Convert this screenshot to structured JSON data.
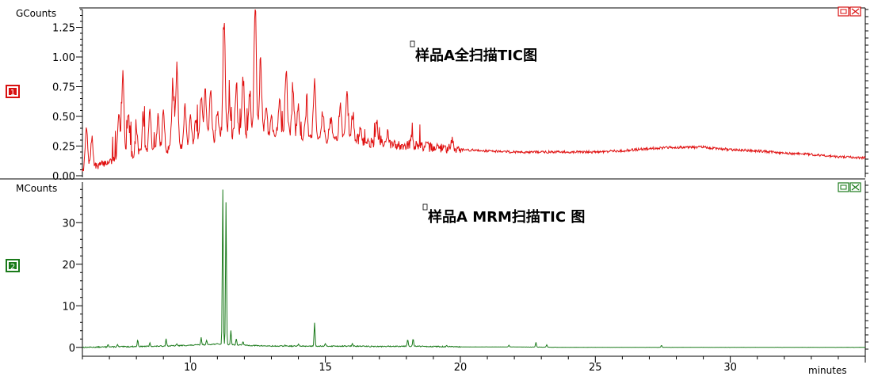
{
  "chart_data": [
    {
      "type": "line",
      "panel_index": "1",
      "title": "样品A全扫描TIC图",
      "ylabel": "GCounts",
      "xlabel": "minutes",
      "color": "#e01010",
      "xlim": [
        6,
        35
      ],
      "ylim": [
        0,
        1.4
      ],
      "y_ticks": [
        0.0,
        0.25,
        0.5,
        0.75,
        1.0,
        1.25
      ],
      "y_tick_labels": [
        "0.00",
        "0.25",
        "0.50",
        "0.75",
        "1.00",
        "1.25"
      ],
      "baseline": [
        [
          6.0,
          0.05
        ],
        [
          6.5,
          0.08
        ],
        [
          7.0,
          0.12
        ],
        [
          7.5,
          0.16
        ],
        [
          8.0,
          0.18
        ],
        [
          8.5,
          0.2
        ],
        [
          9.0,
          0.22
        ],
        [
          9.5,
          0.24
        ],
        [
          10.0,
          0.26
        ],
        [
          10.5,
          0.3
        ],
        [
          11.0,
          0.32
        ],
        [
          11.5,
          0.33
        ],
        [
          12.0,
          0.34
        ],
        [
          12.5,
          0.35
        ],
        [
          13.0,
          0.35
        ],
        [
          13.5,
          0.35
        ],
        [
          14.0,
          0.34
        ],
        [
          14.5,
          0.33
        ],
        [
          15.0,
          0.32
        ],
        [
          15.5,
          0.31
        ],
        [
          16.0,
          0.3
        ],
        [
          16.5,
          0.28
        ],
        [
          17.0,
          0.27
        ],
        [
          17.5,
          0.26
        ],
        [
          18.0,
          0.26
        ],
        [
          18.5,
          0.25
        ],
        [
          19.0,
          0.24
        ],
        [
          19.5,
          0.23
        ],
        [
          20.0,
          0.22
        ],
        [
          21.0,
          0.21
        ],
        [
          22.0,
          0.2
        ],
        [
          23.0,
          0.2
        ],
        [
          24.0,
          0.2
        ],
        [
          25.0,
          0.2
        ],
        [
          26.0,
          0.21
        ],
        [
          27.0,
          0.23
        ],
        [
          28.0,
          0.24
        ],
        [
          29.0,
          0.24
        ],
        [
          30.0,
          0.22
        ],
        [
          31.0,
          0.21
        ],
        [
          32.0,
          0.19
        ],
        [
          33.0,
          0.18
        ],
        [
          34.0,
          0.16
        ],
        [
          35.0,
          0.15
        ]
      ],
      "peaks": [
        [
          6.15,
          0.4
        ],
        [
          6.35,
          0.32
        ],
        [
          7.35,
          0.55
        ],
        [
          7.5,
          0.87
        ],
        [
          7.7,
          0.52
        ],
        [
          8.0,
          0.38
        ],
        [
          8.25,
          0.45
        ],
        [
          8.5,
          0.55
        ],
        [
          8.8,
          0.5
        ],
        [
          9.0,
          0.52
        ],
        [
          9.35,
          0.75
        ],
        [
          9.5,
          0.93
        ],
        [
          9.8,
          0.6
        ],
        [
          10.0,
          0.5
        ],
        [
          10.2,
          0.48
        ],
        [
          10.4,
          0.65
        ],
        [
          10.55,
          0.7
        ],
        [
          10.75,
          0.72
        ],
        [
          11.0,
          0.55
        ],
        [
          11.25,
          1.3
        ],
        [
          11.45,
          0.6
        ],
        [
          11.7,
          0.75
        ],
        [
          11.95,
          0.8
        ],
        [
          12.2,
          0.72
        ],
        [
          12.4,
          1.45
        ],
        [
          12.6,
          0.95
        ],
        [
          12.8,
          0.6
        ],
        [
          13.0,
          0.48
        ],
        [
          13.3,
          0.65
        ],
        [
          13.55,
          0.85
        ],
        [
          13.8,
          0.7
        ],
        [
          14.0,
          0.6
        ],
        [
          14.3,
          0.55
        ],
        [
          14.6,
          0.8
        ],
        [
          14.9,
          0.52
        ],
        [
          15.2,
          0.48
        ],
        [
          15.55,
          0.6
        ],
        [
          15.8,
          0.7
        ],
        [
          16.0,
          0.48
        ],
        [
          16.3,
          0.38
        ],
        [
          16.9,
          0.48
        ],
        [
          17.3,
          0.35
        ],
        [
          18.2,
          0.32
        ],
        [
          19.7,
          0.32
        ]
      ]
    },
    {
      "type": "line",
      "panel_index": "2",
      "title": "样品A MRM扫描TIC 图",
      "ylabel": "MCounts",
      "xlabel": "minutes",
      "color": "#1a7a1a",
      "xlim": [
        6,
        35
      ],
      "ylim": [
        -1,
        39
      ],
      "y_ticks": [
        0,
        10,
        20,
        30
      ],
      "y_tick_labels": [
        "0",
        "10",
        "20",
        "30"
      ],
      "x_ticks": [
        10,
        15,
        20,
        25,
        30
      ],
      "x_tick_labels": [
        "10",
        "15",
        "20",
        "25",
        "30"
      ],
      "baseline": [
        [
          6.0,
          0.0
        ],
        [
          7.0,
          0.1
        ],
        [
          8.0,
          0.2
        ],
        [
          9.0,
          0.3
        ],
        [
          10.0,
          0.5
        ],
        [
          11.0,
          0.8
        ],
        [
          12.0,
          0.5
        ],
        [
          13.0,
          0.3
        ],
        [
          14.0,
          0.3
        ],
        [
          15.0,
          0.3
        ],
        [
          16.0,
          0.3
        ],
        [
          17.0,
          0.2
        ],
        [
          18.0,
          0.3
        ],
        [
          19.0,
          0.2
        ],
        [
          20.0,
          0.1
        ],
        [
          22.0,
          0.1
        ],
        [
          24.0,
          0.0
        ],
        [
          27.0,
          0.0
        ],
        [
          30.0,
          0.0
        ],
        [
          35.0,
          0.0
        ]
      ],
      "peaks": [
        [
          6.95,
          0.8
        ],
        [
          7.3,
          0.6
        ],
        [
          8.05,
          1.8
        ],
        [
          8.5,
          1.0
        ],
        [
          9.1,
          2.2
        ],
        [
          9.5,
          0.8
        ],
        [
          10.4,
          2.3
        ],
        [
          10.6,
          1.6
        ],
        [
          11.2,
          38.0
        ],
        [
          11.32,
          35.0
        ],
        [
          11.5,
          4.0
        ],
        [
          11.7,
          2.0
        ],
        [
          11.95,
          1.5
        ],
        [
          13.5,
          0.5
        ],
        [
          14.0,
          0.8
        ],
        [
          14.6,
          6.0
        ],
        [
          15.0,
          0.8
        ],
        [
          16.0,
          0.8
        ],
        [
          18.05,
          2.0
        ],
        [
          18.25,
          2.0
        ],
        [
          19.5,
          0.4
        ],
        [
          21.8,
          0.5
        ],
        [
          22.8,
          1.2
        ],
        [
          23.2,
          0.6
        ],
        [
          27.45,
          0.5
        ]
      ]
    }
  ]
}
